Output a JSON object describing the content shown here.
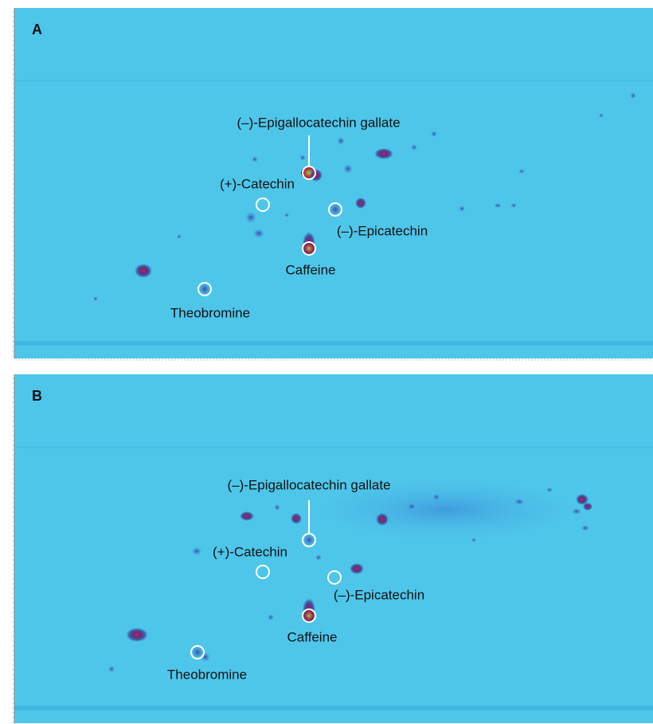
{
  "panels": [
    {
      "label": "A",
      "annotations": [
        {
          "text": "(–)-Epigallocatechin gallate"
        },
        {
          "text": "(+)-Catechin"
        },
        {
          "text": "(–)-Epicatechin"
        },
        {
          "text": "Caffeine"
        },
        {
          "text": "Theobromine"
        }
      ]
    },
    {
      "label": "B",
      "annotations": [
        {
          "text": "(–)-Epigallocatechin gallate"
        },
        {
          "text": "(+)-Catechin"
        },
        {
          "text": "(–)-Epicatechin"
        },
        {
          "text": "Caffeine"
        },
        {
          "text": "Theobromine"
        }
      ]
    }
  ]
}
